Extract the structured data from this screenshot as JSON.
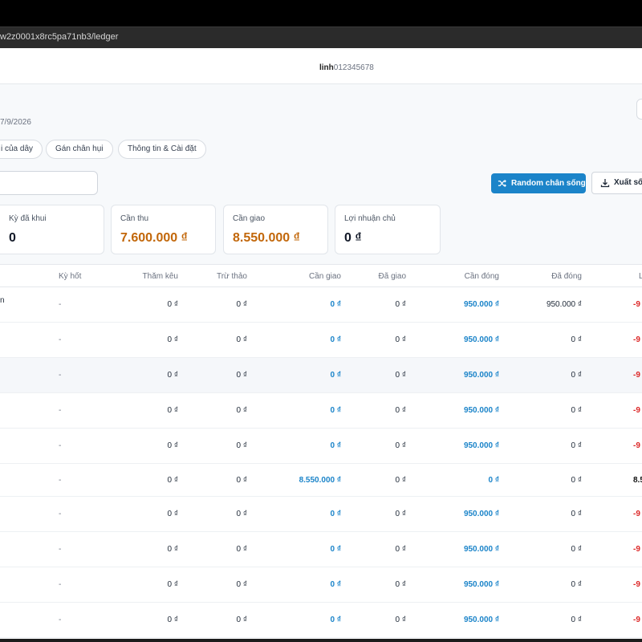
{
  "browser": {
    "url": "w2z0001x8rc5pa71nb3/ledger"
  },
  "header": {
    "username": "linh",
    "phone": "012345678"
  },
  "page": {
    "date_text": "7/9/2026"
  },
  "tabs": [
    {
      "label": "i của dây"
    },
    {
      "label": "Gán chân hụi"
    },
    {
      "label": "Thông tin & Cài đặt"
    }
  ],
  "search": {
    "placeholder": ""
  },
  "actions": {
    "random_label": "Random chân sống",
    "export_label": "Xuất số"
  },
  "summary": [
    {
      "label": "Kỳ đã khui",
      "value": "0",
      "color": "#111827"
    },
    {
      "label": "Cần thu",
      "value": "7.600.000 ₫",
      "color": "#c2670a"
    },
    {
      "label": "Cần giao",
      "value": "8.550.000 ₫",
      "color": "#c2670a"
    },
    {
      "label": "Lợi nhuận chủ",
      "value": "0 ₫",
      "color": "#111827"
    }
  ],
  "table": {
    "columns": [
      "Kỳ hốt",
      "Thăm kêu",
      "Trừ thảo",
      "Cần giao",
      "Đã giao",
      "Cần đóng",
      "Đã đóng",
      "L"
    ],
    "rows": [
      {
        "first": "n",
        "ky_hot": "-",
        "tham_keu": "0 ₫",
        "tru_thao": "0 ₫",
        "can_giao": "0 ₫",
        "da_giao": "0 ₫",
        "can_dong": "950.000 ₫",
        "da_dong": "950.000 ₫",
        "last": "-9"
      },
      {
        "first": "",
        "ky_hot": "-",
        "tham_keu": "0 ₫",
        "tru_thao": "0 ₫",
        "can_giao": "0 ₫",
        "da_giao": "0 ₫",
        "can_dong": "950.000 ₫",
        "da_dong": "0 ₫",
        "last": "-9"
      },
      {
        "first": "",
        "ky_hot": "-",
        "tham_keu": "0 ₫",
        "tru_thao": "0 ₫",
        "can_giao": "0 ₫",
        "da_giao": "0 ₫",
        "can_dong": "950.000 ₫",
        "da_dong": "0 ₫",
        "last": "-9"
      },
      {
        "first": "",
        "ky_hot": "-",
        "tham_keu": "0 ₫",
        "tru_thao": "0 ₫",
        "can_giao": "0 ₫",
        "da_giao": "0 ₫",
        "can_dong": "950.000 ₫",
        "da_dong": "0 ₫",
        "last": "-9"
      },
      {
        "first": "",
        "ky_hot": "-",
        "tham_keu": "0 ₫",
        "tru_thao": "0 ₫",
        "can_giao": "0 ₫",
        "da_giao": "0 ₫",
        "can_dong": "950.000 ₫",
        "da_dong": "0 ₫",
        "last": "-9"
      },
      {
        "first": "",
        "ky_hot": "-",
        "tham_keu": "0 ₫",
        "tru_thao": "0 ₫",
        "can_giao": "8.550.000 ₫",
        "da_giao": "0 ₫",
        "can_dong": "0 ₫",
        "da_dong": "0 ₫",
        "last": "8.5"
      },
      {
        "first": "",
        "ky_hot": "-",
        "tham_keu": "0 ₫",
        "tru_thao": "0 ₫",
        "can_giao": "0 ₫",
        "da_giao": "0 ₫",
        "can_dong": "950.000 ₫",
        "da_dong": "0 ₫",
        "last": "-9"
      },
      {
        "first": "",
        "ky_hot": "-",
        "tham_keu": "0 ₫",
        "tru_thao": "0 ₫",
        "can_giao": "0 ₫",
        "da_giao": "0 ₫",
        "can_dong": "950.000 ₫",
        "da_dong": "0 ₫",
        "last": "-9"
      },
      {
        "first": "",
        "ky_hot": "-",
        "tham_keu": "0 ₫",
        "tru_thao": "0 ₫",
        "can_giao": "0 ₫",
        "da_giao": "0 ₫",
        "can_dong": "950.000 ₫",
        "da_dong": "0 ₫",
        "last": "-9"
      },
      {
        "first": "",
        "ky_hot": "-",
        "tham_keu": "0 ₫",
        "tru_thao": "0 ₫",
        "can_giao": "0 ₫",
        "da_giao": "0 ₫",
        "can_dong": "950.000 ₫",
        "da_dong": "0 ₫",
        "last": "-9"
      }
    ]
  },
  "colors": {
    "accent": "#1b84c9",
    "orange": "#c2670a",
    "negative": "#dc2626"
  }
}
